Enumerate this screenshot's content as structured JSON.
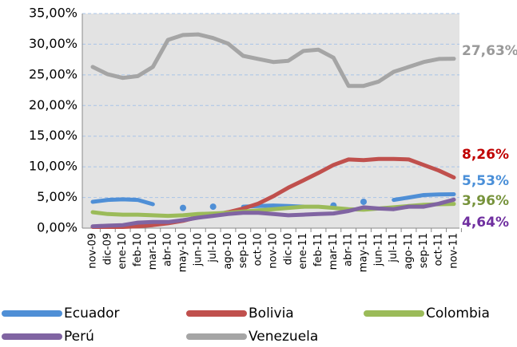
{
  "chart_data": {
    "type": "line",
    "categories": [
      "nov-09",
      "dic-09",
      "ene-10",
      "feb-10",
      "mar-10",
      "abr-10",
      "may-10",
      "jun-10",
      "jul-10",
      "ago-10",
      "sep-10",
      "oct-10",
      "nov-10",
      "dic-10",
      "ene-11",
      "feb-11",
      "mar-11",
      "abr-11",
      "may-11",
      "jun-11",
      "jul-11",
      "ago-11",
      "sep-11",
      "oct-11",
      "nov-11"
    ],
    "ylim": [
      0,
      35
    ],
    "yticks": [
      {
        "value": 0,
        "label": "0,00%"
      },
      {
        "value": 5,
        "label": "5,00%"
      },
      {
        "value": 10,
        "label": "10,00%"
      },
      {
        "value": 15,
        "label": "15,00%"
      },
      {
        "value": 20,
        "label": "20,00%"
      },
      {
        "value": 25,
        "label": "25,00%"
      },
      {
        "value": 30,
        "label": "30,00%"
      },
      {
        "value": 35,
        "label": "35,00%"
      }
    ],
    "grid": true,
    "series": [
      {
        "name": "Ecuador",
        "color": "#4f8fd6",
        "label_color": "#4a8fd8",
        "values": [
          4.3,
          4.6,
          4.7,
          4.6,
          3.9,
          null,
          3.3,
          null,
          3.5,
          null,
          3.5,
          3.6,
          3.7,
          3.6,
          3.5,
          null,
          3.7,
          null,
          4.3,
          null,
          4.6,
          5.0,
          5.4,
          5.5,
          5.53
        ],
        "value_labels": [
          null,
          null,
          null,
          null,
          null,
          null,
          null,
          null,
          null,
          null,
          null,
          null,
          null,
          null,
          null,
          null,
          null,
          null,
          null,
          null,
          null,
          null,
          null,
          null,
          "5,53%"
        ]
      },
      {
        "name": "Bolivia",
        "color": "#c0504d",
        "label_color": "#c00000",
        "values": [
          0.2,
          0.2,
          0.2,
          0.3,
          0.5,
          0.8,
          1.2,
          1.8,
          2.2,
          2.6,
          3.2,
          4.0,
          5.2,
          6.6,
          7.8,
          9.0,
          10.3,
          11.2,
          11.1,
          11.3,
          11.3,
          11.2,
          10.3,
          9.4,
          8.26
        ],
        "value_labels": [
          null,
          null,
          null,
          null,
          null,
          null,
          null,
          null,
          null,
          null,
          null,
          null,
          null,
          null,
          null,
          null,
          null,
          null,
          null,
          null,
          null,
          null,
          null,
          null,
          "8,26%"
        ]
      },
      {
        "name": "Colombia",
        "color": "#9bbb59",
        "label_color": "#77933c",
        "values": [
          2.6,
          2.3,
          2.2,
          2.2,
          2.1,
          2.0,
          2.1,
          2.3,
          2.4,
          2.5,
          2.7,
          2.9,
          3.1,
          3.3,
          3.5,
          3.5,
          3.3,
          3.1,
          3.0,
          3.2,
          3.4,
          3.6,
          3.8,
          3.9,
          3.96
        ],
        "value_labels": [
          null,
          null,
          null,
          null,
          null,
          null,
          null,
          null,
          null,
          null,
          null,
          null,
          null,
          null,
          null,
          null,
          null,
          null,
          null,
          null,
          null,
          null,
          null,
          null,
          "3,96%"
        ]
      },
      {
        "name": "Perú",
        "color": "#8064a2",
        "label_color": "#7030a0",
        "values": [
          0.3,
          0.4,
          0.5,
          0.9,
          1.0,
          1.0,
          1.3,
          1.7,
          2.0,
          2.3,
          2.5,
          2.5,
          2.3,
          2.1,
          2.2,
          2.3,
          2.4,
          2.8,
          3.4,
          3.2,
          3.1,
          3.5,
          3.5,
          4.0,
          4.64
        ],
        "value_labels": [
          null,
          null,
          null,
          null,
          null,
          null,
          null,
          null,
          null,
          null,
          null,
          null,
          null,
          null,
          null,
          null,
          null,
          null,
          null,
          null,
          null,
          null,
          null,
          null,
          "4,64%"
        ]
      },
      {
        "name": "Venezuela",
        "color": "#a5a5a5",
        "label_color": "#999999",
        "values": [
          26.3,
          25.1,
          24.5,
          24.8,
          26.3,
          30.7,
          31.5,
          31.6,
          31.0,
          30.1,
          28.1,
          27.6,
          27.1,
          27.3,
          28.9,
          29.1,
          27.8,
          23.2,
          23.2,
          23.9,
          25.5,
          26.3,
          27.1,
          27.6,
          27.63
        ],
        "value_labels": [
          null,
          null,
          null,
          null,
          null,
          null,
          null,
          null,
          null,
          null,
          null,
          null,
          null,
          null,
          null,
          null,
          null,
          null,
          null,
          null,
          null,
          null,
          null,
          null,
          "27,63%"
        ]
      }
    ]
  }
}
